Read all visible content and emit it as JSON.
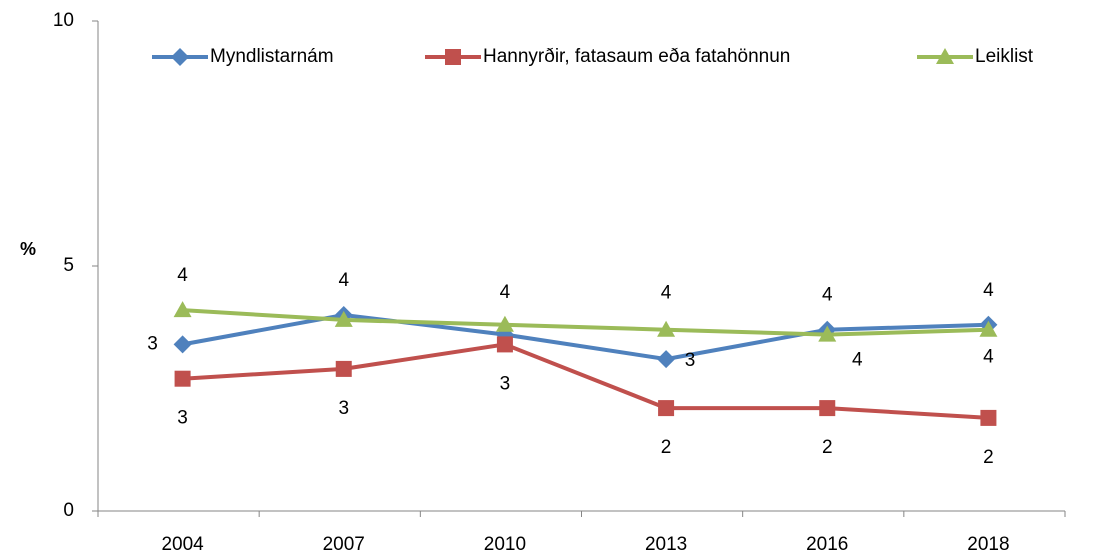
{
  "chart_data": {
    "type": "line",
    "ylabel": "%",
    "categories": [
      "2004",
      "2007",
      "2010",
      "2013",
      "2016",
      "2018"
    ],
    "ylim": [
      0,
      10
    ],
    "yticks": [
      0,
      5,
      10
    ],
    "grid": false,
    "legend": "top",
    "series": [
      {
        "name": "Myndlistarnám",
        "color": "#4f81bd",
        "marker": "diamond",
        "values": [
          3.4,
          4.0,
          3.6,
          3.1,
          3.7,
          3.8
        ],
        "value_labels": [
          "3",
          "4",
          null,
          "3",
          "4",
          "4"
        ]
      },
      {
        "name": "Hannyrðir, fatasaum eða fatahönnun",
        "color": "#c0504d",
        "marker": "square",
        "values": [
          2.7,
          2.9,
          3.4,
          2.1,
          2.1,
          1.9
        ],
        "value_labels": [
          "3",
          "3",
          "3",
          "2",
          "2",
          "2"
        ]
      },
      {
        "name": "Leiklist",
        "color": "#9bbb59",
        "marker": "triangle",
        "values": [
          4.1,
          3.9,
          3.8,
          3.7,
          3.6,
          3.7
        ],
        "value_labels": [
          "4",
          null,
          "4",
          "4",
          "4",
          "4"
        ]
      }
    ]
  }
}
